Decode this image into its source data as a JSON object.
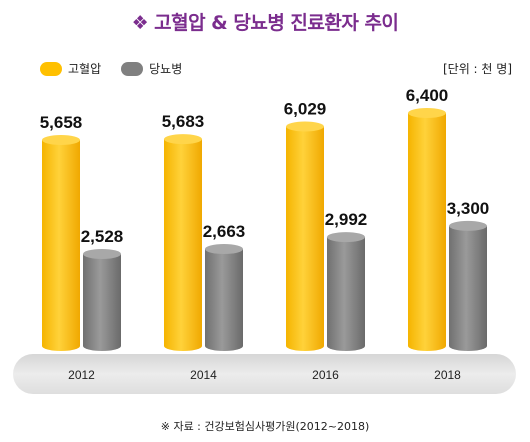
{
  "title": "고혈압 & 당뇨병 진료환자 추이",
  "title_icon": "❖",
  "unit_label": "[단위 : 천 명]",
  "source": "※ 자료 : 건강보험심사평가원(2012~2018)",
  "colors": {
    "title": "#7b2d8e",
    "hypertension": "#ffc000",
    "diabetes": "#808080",
    "axis_band": "#e6e6e6"
  },
  "chart_data": {
    "type": "bar",
    "categories": [
      "2012",
      "2014",
      "2016",
      "2018"
    ],
    "series": [
      {
        "name": "고혈압",
        "values": [
          5658,
          5683,
          6029,
          6400
        ],
        "labels": [
          "5,658",
          "5,683",
          "6,029",
          "6,400"
        ]
      },
      {
        "name": "당뇨병",
        "values": [
          2528,
          2663,
          2992,
          3300
        ],
        "labels": [
          "2,528",
          "2,663",
          "2,992",
          "3,300"
        ]
      }
    ],
    "grid": false,
    "legend_position": "top-left"
  }
}
